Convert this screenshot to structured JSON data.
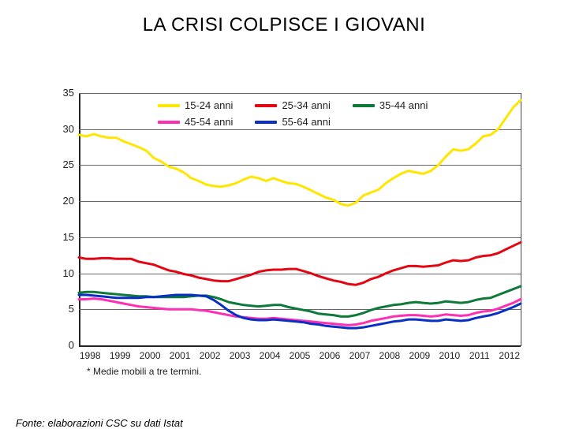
{
  "title": "LA CRISI COLPISCE I GIOVANI",
  "footnote": "* Medie mobili a tre termini.",
  "source": "Fonte: elaborazioni CSC su dati Istat",
  "chart": {
    "type": "line",
    "background_color": "#ffffff",
    "grid_color": "#666666",
    "axis_color": "#222222",
    "ylim": [
      0,
      35
    ],
    "ytick_step": 5,
    "yticks": [
      0,
      5,
      10,
      15,
      20,
      25,
      30,
      35
    ],
    "xticks": [
      "1998",
      "1999",
      "2000",
      "2001",
      "2002",
      "2003",
      "2004",
      "2005",
      "2006",
      "2007",
      "2008",
      "2009",
      "2010",
      "2011",
      "2012"
    ],
    "label_fontsize": 13,
    "line_width": 3,
    "series": [
      {
        "name": "15-24 anni",
        "color": "#ffe600",
        "values_quarterly": [
          29.2,
          29.0,
          29.3,
          29.0,
          28.8,
          28.8,
          28.3,
          27.9,
          27.5,
          27.0,
          26.0,
          25.5,
          24.8,
          24.5,
          24.0,
          23.2,
          22.8,
          22.3,
          22.1,
          22.0,
          22.2,
          22.5,
          23.0,
          23.4,
          23.2,
          22.8,
          23.2,
          22.8,
          22.5,
          22.4,
          22.0,
          21.5,
          21.0,
          20.5,
          20.2,
          19.6,
          19.4,
          19.8,
          20.8,
          21.2,
          21.6,
          22.5,
          23.2,
          23.8,
          24.2,
          24.0,
          23.8,
          24.2,
          25.0,
          26.2,
          27.2,
          27.0,
          27.2,
          28.0,
          29.0,
          29.2,
          30.0,
          31.5,
          33.0,
          34.0
        ]
      },
      {
        "name": "25-34 anni",
        "color": "#e30613",
        "values_quarterly": [
          12.2,
          12.0,
          12.0,
          12.1,
          12.1,
          12.0,
          12.0,
          12.0,
          11.6,
          11.4,
          11.2,
          10.8,
          10.4,
          10.2,
          9.9,
          9.7,
          9.4,
          9.2,
          9.0,
          8.9,
          8.9,
          9.2,
          9.5,
          9.8,
          10.2,
          10.4,
          10.5,
          10.5,
          10.6,
          10.6,
          10.3,
          10.0,
          9.6,
          9.3,
          9.0,
          8.8,
          8.5,
          8.4,
          8.7,
          9.2,
          9.5,
          10.0,
          10.4,
          10.7,
          11.0,
          11.0,
          10.9,
          11.0,
          11.1,
          11.5,
          11.8,
          11.7,
          11.8,
          12.2,
          12.4,
          12.5,
          12.8,
          13.3,
          13.8,
          14.3
        ]
      },
      {
        "name": "35-44 anni",
        "color": "#0e7a3a",
        "values_quarterly": [
          7.3,
          7.4,
          7.4,
          7.3,
          7.2,
          7.1,
          7.0,
          6.9,
          6.8,
          6.8,
          6.7,
          6.7,
          6.7,
          6.7,
          6.7,
          6.8,
          6.9,
          6.9,
          6.7,
          6.4,
          6.0,
          5.8,
          5.6,
          5.5,
          5.4,
          5.5,
          5.6,
          5.6,
          5.3,
          5.1,
          4.9,
          4.7,
          4.4,
          4.3,
          4.2,
          4.0,
          4.0,
          4.2,
          4.5,
          4.9,
          5.2,
          5.4,
          5.6,
          5.7,
          5.9,
          6.0,
          5.9,
          5.8,
          5.9,
          6.1,
          6.0,
          5.9,
          6.0,
          6.3,
          6.5,
          6.6,
          7.0,
          7.4,
          7.8,
          8.2
        ]
      },
      {
        "name": "45-54 anni",
        "color": "#ff2fb3",
        "values_quarterly": [
          6.4,
          6.4,
          6.5,
          6.4,
          6.2,
          6.0,
          5.8,
          5.6,
          5.4,
          5.3,
          5.2,
          5.1,
          5.0,
          5.0,
          5.0,
          5.0,
          4.9,
          4.8,
          4.6,
          4.4,
          4.2,
          4.0,
          3.9,
          3.8,
          3.7,
          3.7,
          3.8,
          3.7,
          3.6,
          3.5,
          3.4,
          3.3,
          3.2,
          3.1,
          3.0,
          2.9,
          2.8,
          2.9,
          3.1,
          3.4,
          3.6,
          3.8,
          4.0,
          4.1,
          4.2,
          4.2,
          4.1,
          4.0,
          4.1,
          4.3,
          4.2,
          4.1,
          4.2,
          4.5,
          4.7,
          4.8,
          5.1,
          5.5,
          5.9,
          6.4
        ]
      },
      {
        "name": "55-64 anni",
        "color": "#0a2fc5",
        "values_quarterly": [
          7.0,
          7.0,
          6.9,
          6.8,
          6.7,
          6.6,
          6.6,
          6.6,
          6.6,
          6.7,
          6.7,
          6.8,
          6.9,
          7.0,
          7.0,
          7.0,
          6.9,
          6.8,
          6.3,
          5.6,
          4.8,
          4.2,
          3.8,
          3.6,
          3.5,
          3.5,
          3.6,
          3.5,
          3.4,
          3.3,
          3.2,
          3.0,
          2.9,
          2.7,
          2.6,
          2.5,
          2.4,
          2.4,
          2.5,
          2.7,
          2.9,
          3.1,
          3.3,
          3.4,
          3.6,
          3.6,
          3.5,
          3.4,
          3.4,
          3.6,
          3.5,
          3.4,
          3.5,
          3.8,
          4.0,
          4.2,
          4.5,
          4.9,
          5.3,
          5.8
        ]
      }
    ],
    "legend_position": "top-center"
  }
}
